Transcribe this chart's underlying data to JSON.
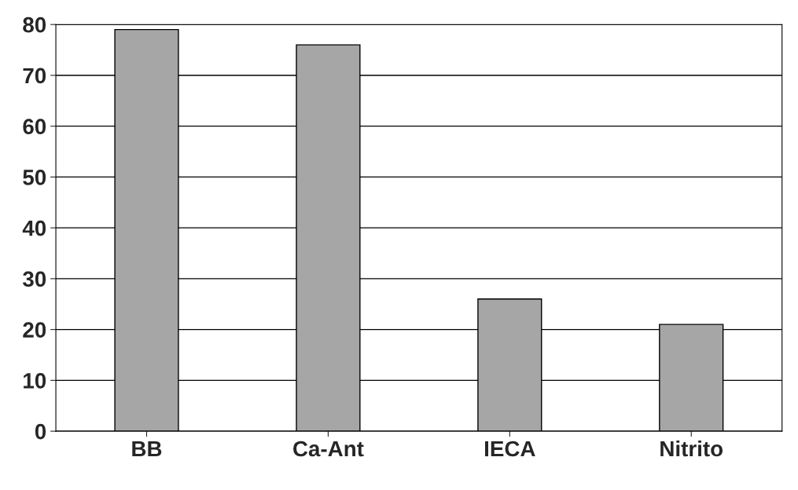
{
  "chart_data": {
    "type": "bar",
    "categories": [
      "BB",
      "Ca-Ant",
      "IECA",
      "Nitrito"
    ],
    "values": [
      79,
      76,
      26,
      21
    ],
    "color": "#a6a6a6",
    "ylim": [
      0,
      80
    ],
    "yticks": [
      0,
      10,
      20,
      30,
      40,
      50,
      60,
      70,
      80
    ],
    "grid": "y"
  }
}
